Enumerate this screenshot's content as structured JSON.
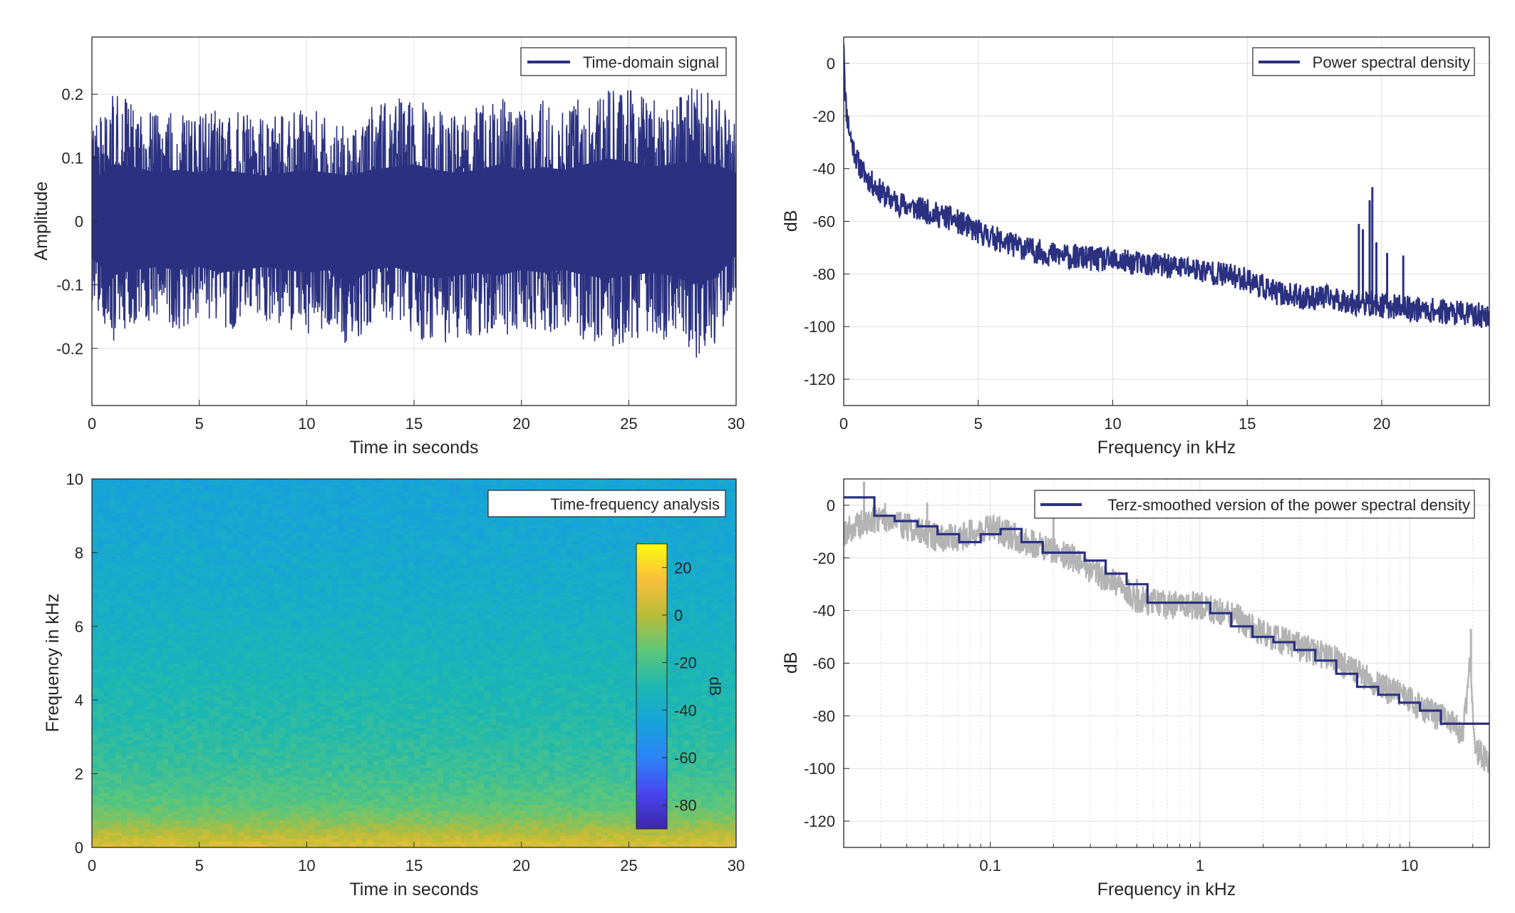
{
  "colors": {
    "series": "#2b3180",
    "raw_series": "#b3b3b3",
    "grid": "#dedede",
    "axis": "#262626",
    "colormap": [
      "#3e26a8",
      "#4845f0",
      "#2c85f7",
      "#16a3d9",
      "#1db8b1",
      "#5cc67a",
      "#b9bc39",
      "#f9bf3a",
      "#f9fb0e"
    ]
  },
  "chart_data": [
    {
      "type": "line",
      "id": "time-domain",
      "title": "",
      "legend": [
        "Time-domain signal"
      ],
      "legend_position": "top-right",
      "xlabel": "Time in seconds",
      "ylabel": "Amplitude",
      "xlim": [
        0,
        30
      ],
      "ylim": [
        -0.29,
        0.29
      ],
      "xticks": [
        0,
        5,
        10,
        15,
        20,
        25,
        30
      ],
      "xtick_labels": [
        "0",
        "5",
        "10",
        "15",
        "20",
        "25",
        "30"
      ],
      "yticks": [
        -0.2,
        -0.1,
        0,
        0.1,
        0.2
      ],
      "ytick_labels": [
        "-0.2",
        "-0.1",
        "0",
        "0.1",
        "0.2"
      ],
      "grid": true,
      "series": [
        {
          "name": "Time-domain signal",
          "description": "dense noise signal; envelope of peak amplitude per second",
          "x": [
            0,
            1,
            2,
            3,
            4,
            5,
            6,
            7,
            8,
            9,
            10,
            11,
            12,
            13,
            14,
            15,
            16,
            17,
            18,
            19,
            20,
            21,
            22,
            23,
            24,
            25,
            26,
            27,
            28,
            29,
            30
          ],
          "upper": [
            0.14,
            0.2,
            0.19,
            0.17,
            0.18,
            0.17,
            0.18,
            0.17,
            0.16,
            0.17,
            0.18,
            0.17,
            0.16,
            0.18,
            0.19,
            0.2,
            0.18,
            0.17,
            0.18,
            0.2,
            0.18,
            0.19,
            0.18,
            0.2,
            0.22,
            0.21,
            0.19,
            0.2,
            0.21,
            0.2,
            0.17
          ],
          "lower": [
            -0.13,
            -0.19,
            -0.17,
            -0.16,
            -0.17,
            -0.16,
            -0.18,
            -0.17,
            -0.16,
            -0.17,
            -0.18,
            -0.17,
            -0.22,
            -0.17,
            -0.16,
            -0.18,
            -0.2,
            -0.19,
            -0.18,
            -0.19,
            -0.17,
            -0.18,
            -0.17,
            -0.19,
            -0.2,
            -0.19,
            -0.18,
            -0.19,
            -0.22,
            -0.2,
            -0.12
          ]
        }
      ]
    },
    {
      "type": "line",
      "id": "psd",
      "title": "",
      "legend": [
        "Power spectral density"
      ],
      "legend_position": "top-right",
      "xlabel": "Frequency in kHz",
      "ylabel": "dB",
      "xlim": [
        0,
        24
      ],
      "ylim": [
        -130,
        10
      ],
      "xticks": [
        0,
        5,
        10,
        15,
        20
      ],
      "xtick_labels": [
        "0",
        "5",
        "10",
        "15",
        "20"
      ],
      "yticks": [
        -120,
        -100,
        -80,
        -60,
        -40,
        -20,
        0
      ],
      "ytick_labels": [
        "-120",
        "-100",
        "-80",
        "-60",
        "-40",
        "-20",
        "0"
      ],
      "grid": true,
      "series": [
        {
          "name": "Power spectral density",
          "x": [
            0,
            0.05,
            0.1,
            0.2,
            0.3,
            0.5,
            0.7,
            1.0,
            1.5,
            2.0,
            3.0,
            4.0,
            5.0,
            6.0,
            7.0,
            8.0,
            9.0,
            10.0,
            11.0,
            12.0,
            13.0,
            14.0,
            15.0,
            16.0,
            17.0,
            18.0,
            19.0,
            20.0,
            21.0,
            22.0,
            23.0,
            24.0
          ],
          "y": [
            10,
            -10,
            -18,
            -25,
            -30,
            -37,
            -41,
            -45,
            -50,
            -53,
            -56,
            -59,
            -64,
            -68,
            -71,
            -73,
            -74,
            -75,
            -76,
            -77,
            -78,
            -80,
            -82,
            -87,
            -89,
            -89,
            -91,
            -92,
            -93,
            -94,
            -95,
            -96
          ],
          "spread": 3,
          "peaks": [
            {
              "x": 19.15,
              "y": -61
            },
            {
              "x": 19.3,
              "y": -63
            },
            {
              "x": 19.55,
              "y": -52
            },
            {
              "x": 19.65,
              "y": -47
            },
            {
              "x": 19.8,
              "y": -68
            },
            {
              "x": 20.2,
              "y": -72
            },
            {
              "x": 20.8,
              "y": -73
            }
          ]
        }
      ]
    },
    {
      "type": "heatmap",
      "id": "spectrogram",
      "title": "",
      "legend": [
        "Time-frequency analysis"
      ],
      "legend_position": "top-right",
      "xlabel": "Time in seconds",
      "ylabel": "Frequency in kHz",
      "xlim": [
        0,
        30
      ],
      "ylim": [
        0,
        10
      ],
      "xticks": [
        0,
        5,
        10,
        15,
        20,
        25,
        30
      ],
      "xtick_labels": [
        "0",
        "5",
        "10",
        "15",
        "20",
        "25",
        "30"
      ],
      "yticks": [
        0,
        2,
        4,
        6,
        8,
        10
      ],
      "ytick_labels": [
        "0",
        "2",
        "4",
        "6",
        "8",
        "10"
      ],
      "colorbar": {
        "label": "dB",
        "range": [
          -90,
          30
        ],
        "ticks": [
          -80,
          -60,
          -40,
          -20,
          0,
          20
        ],
        "tick_labels": [
          "-80",
          "-60",
          "-40",
          "-20",
          "0",
          "20"
        ]
      },
      "level_by_frequency": {
        "freq_khz": [
          0,
          0.3,
          0.7,
          1.2,
          2,
          3,
          4,
          5,
          6,
          7,
          8,
          9,
          10
        ],
        "db": [
          8,
          2,
          -8,
          -16,
          -22,
          -27,
          -30,
          -33,
          -36,
          -39,
          -41,
          -43,
          -44
        ]
      }
    },
    {
      "type": "line",
      "id": "terz-psd",
      "title": "",
      "legend": [
        "Terz-smoothed version of the power spectral density"
      ],
      "legend_position": "top-right",
      "xlabel": "Frequency in kHz",
      "ylabel": "dB",
      "xscale": "log",
      "xlim": [
        0.02,
        24
      ],
      "ylim": [
        -130,
        10
      ],
      "xticks": [
        0.1,
        1,
        10
      ],
      "xtick_labels": [
        "0.1",
        "1",
        "10"
      ],
      "yticks": [
        -120,
        -100,
        -80,
        -60,
        -40,
        -20,
        0
      ],
      "ytick_labels": [
        "-120",
        "-100",
        "-80",
        "-60",
        "-40",
        "-20",
        "0"
      ],
      "grid": true,
      "series": [
        {
          "name": "Terz-smoothed version of the power spectral density",
          "x": [
            0.02,
            0.028,
            0.035,
            0.045,
            0.056,
            0.071,
            0.09,
            0.112,
            0.141,
            0.178,
            0.224,
            0.282,
            0.355,
            0.447,
            0.562,
            0.708,
            0.891,
            1.12,
            1.41,
            1.78,
            2.24,
            2.82,
            3.55,
            4.47,
            5.62,
            7.08,
            8.91,
            11.2,
            14.1,
            24
          ],
          "y": [
            3,
            -4,
            -6,
            -8,
            -11,
            -14,
            -11,
            -9,
            -14,
            -18,
            -18,
            -21,
            -26,
            -30,
            -37,
            -37,
            -37,
            -41,
            -46,
            -50,
            -52,
            -55,
            -59,
            -64,
            -69,
            -72,
            -75,
            -78,
            -83,
            -83
          ]
        },
        {
          "name": "",
          "role": "raw power spectral density (grey)",
          "x": [
            0.02,
            0.025,
            0.03,
            0.04,
            0.05,
            0.06,
            0.08,
            0.1,
            0.12,
            0.15,
            0.2,
            0.25,
            0.3,
            0.4,
            0.5,
            0.7,
            1.0,
            1.5,
            2.0,
            3.0,
            4.0,
            5.0,
            7.0,
            10.0,
            12.0,
            15.0,
            18.0,
            19.5,
            20.5,
            22.0,
            24.0
          ],
          "y": [
            -10,
            -7,
            -4,
            -8,
            -11,
            -13,
            -11,
            -8,
            -11,
            -14,
            -17,
            -20,
            -24,
            -30,
            -36,
            -38,
            -38,
            -43,
            -49,
            -54,
            -57,
            -61,
            -68,
            -74,
            -78,
            -82,
            -87,
            -60,
            -92,
            -96,
            -98
          ],
          "spread": 4,
          "peaks": [
            {
              "x": 0.025,
              "y": 9
            },
            {
              "x": 0.05,
              "y": 1
            },
            {
              "x": 0.2,
              "y": -2
            },
            {
              "x": 0.42,
              "y": -29
            },
            {
              "x": 0.5,
              "y": -28
            },
            {
              "x": 19.6,
              "y": -47
            }
          ]
        }
      ]
    }
  ]
}
